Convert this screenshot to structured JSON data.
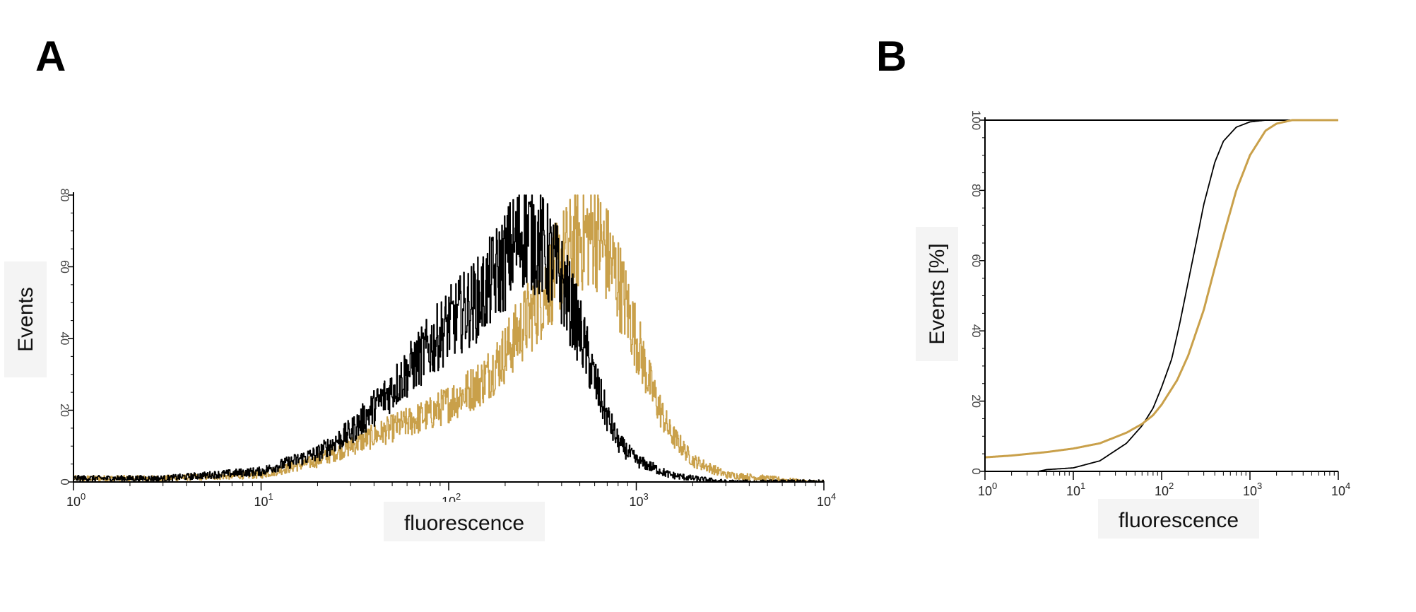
{
  "panels": [
    {
      "letter": "A"
    },
    {
      "letter": "B"
    }
  ],
  "colors": {
    "control": "#000000",
    "sample": "#c9a04a",
    "axis": "#000000",
    "label_bg": "#f4f4f4"
  },
  "chart_data": [
    {
      "type": "line",
      "panel": "A",
      "title": "",
      "xlabel": "fluorescence",
      "ylabel": "Events",
      "xscale": "log",
      "xlim": [
        1,
        10000
      ],
      "ylim": [
        0,
        80
      ],
      "x_ticks": [
        {
          "base": "10",
          "exp": "0"
        },
        {
          "base": "10",
          "exp": "1"
        },
        {
          "base": "10",
          "exp": "2"
        },
        {
          "base": "10",
          "exp": "3"
        },
        {
          "base": "10",
          "exp": "4"
        }
      ],
      "y_ticks": [
        "0",
        "20",
        "40",
        "60",
        "80"
      ],
      "legend": "none",
      "grid": false,
      "series": [
        {
          "x": [
            1,
            3,
            10,
            20,
            30,
            50,
            80,
            100,
            150,
            200,
            250,
            300,
            350,
            400,
            500,
            600,
            700,
            800,
            1000,
            1500,
            2000,
            3000
          ],
          "y": [
            1,
            1,
            3,
            8,
            14,
            26,
            38,
            44,
            52,
            62,
            70,
            67,
            62,
            56,
            42,
            28,
            18,
            11,
            6,
            2,
            1,
            0
          ]
        },
        {
          "x": [
            1,
            3,
            10,
            20,
            30,
            50,
            80,
            100,
            150,
            200,
            300,
            400,
            500,
            600,
            700,
            800,
            1000,
            1200,
            1500,
            2000,
            3000,
            5000,
            8000
          ],
          "y": [
            1,
            1,
            2,
            6,
            10,
            15,
            19,
            22,
            28,
            36,
            50,
            62,
            68,
            70,
            63,
            56,
            40,
            26,
            14,
            6,
            2,
            1,
            0
          ]
        }
      ]
    },
    {
      "type": "line",
      "panel": "B",
      "title": "",
      "xlabel": "fluorescence",
      "ylabel": "Events [%]",
      "xscale": "log",
      "xlim": [
        1,
        10000
      ],
      "ylim": [
        0,
        100
      ],
      "x_ticks": [
        {
          "base": "10",
          "exp": "0"
        },
        {
          "base": "10",
          "exp": "1"
        },
        {
          "base": "10",
          "exp": "2"
        },
        {
          "base": "10",
          "exp": "3"
        },
        {
          "base": "10",
          "exp": "4"
        }
      ],
      "y_ticks": [
        "0",
        "20",
        "40",
        "60",
        "80",
        "100"
      ],
      "legend": "none",
      "grid": false,
      "reference_line": 100,
      "series": [
        {
          "x": [
            1,
            4,
            5,
            10,
            20,
            40,
            60,
            80,
            100,
            130,
            160,
            200,
            250,
            300,
            400,
            500,
            700,
            1000,
            1500,
            2000,
            10000
          ],
          "y": [
            0,
            0,
            0.5,
            1,
            3,
            8,
            13,
            18,
            24,
            32,
            42,
            54,
            66,
            76,
            88,
            94,
            98,
            99.5,
            100,
            100,
            100
          ]
        },
        {
          "x": [
            1,
            2,
            5,
            10,
            20,
            40,
            60,
            80,
            100,
            150,
            200,
            300,
            400,
            500,
            700,
            1000,
            1500,
            2000,
            3000,
            10000
          ],
          "y": [
            4,
            4.5,
            5.5,
            6.5,
            8,
            11,
            13.5,
            16,
            19,
            26,
            33,
            46,
            58,
            67,
            80,
            90,
            97,
            99,
            100,
            100
          ]
        }
      ]
    }
  ]
}
